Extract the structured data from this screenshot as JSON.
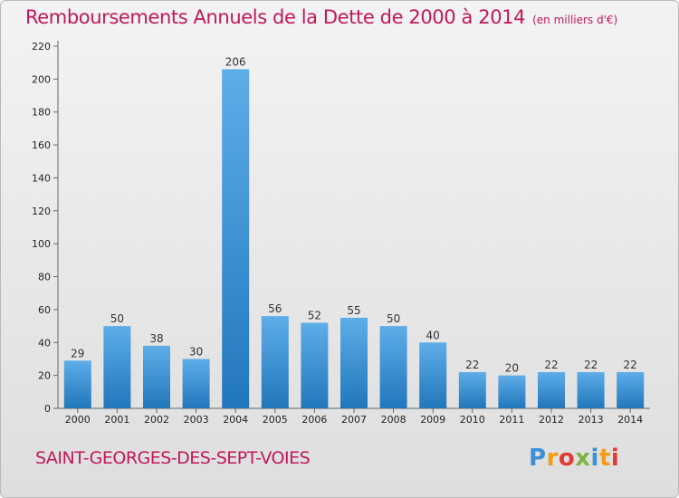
{
  "header": {
    "title": "Remboursements Annuels de la Dette de 2000 à 2014",
    "unit": "(en milliers d'€)"
  },
  "footer": {
    "commune": "SAINT-GEORGES-DES-SEPT-VOIES",
    "logo": "Proxiti"
  },
  "chart_data": {
    "type": "bar",
    "title": "Remboursements Annuels de la Dette de 2000 à 2014",
    "xlabel": "",
    "ylabel": "",
    "categories": [
      "2000",
      "2001",
      "2002",
      "2003",
      "2004",
      "2005",
      "2006",
      "2007",
      "2008",
      "2009",
      "2010",
      "2011",
      "2012",
      "2013",
      "2014"
    ],
    "values": [
      29,
      50,
      38,
      30,
      206,
      56,
      52,
      55,
      50,
      40,
      22,
      20,
      22,
      22,
      22
    ],
    "ylim": [
      0,
      220
    ],
    "yticks": [
      0,
      20,
      40,
      60,
      80,
      100,
      120,
      140,
      160,
      180,
      200,
      220
    ],
    "grid": false,
    "colors": {
      "bar_light": "#5dade8",
      "bar_dark": "#2277bb",
      "title": "#c2185b"
    }
  }
}
